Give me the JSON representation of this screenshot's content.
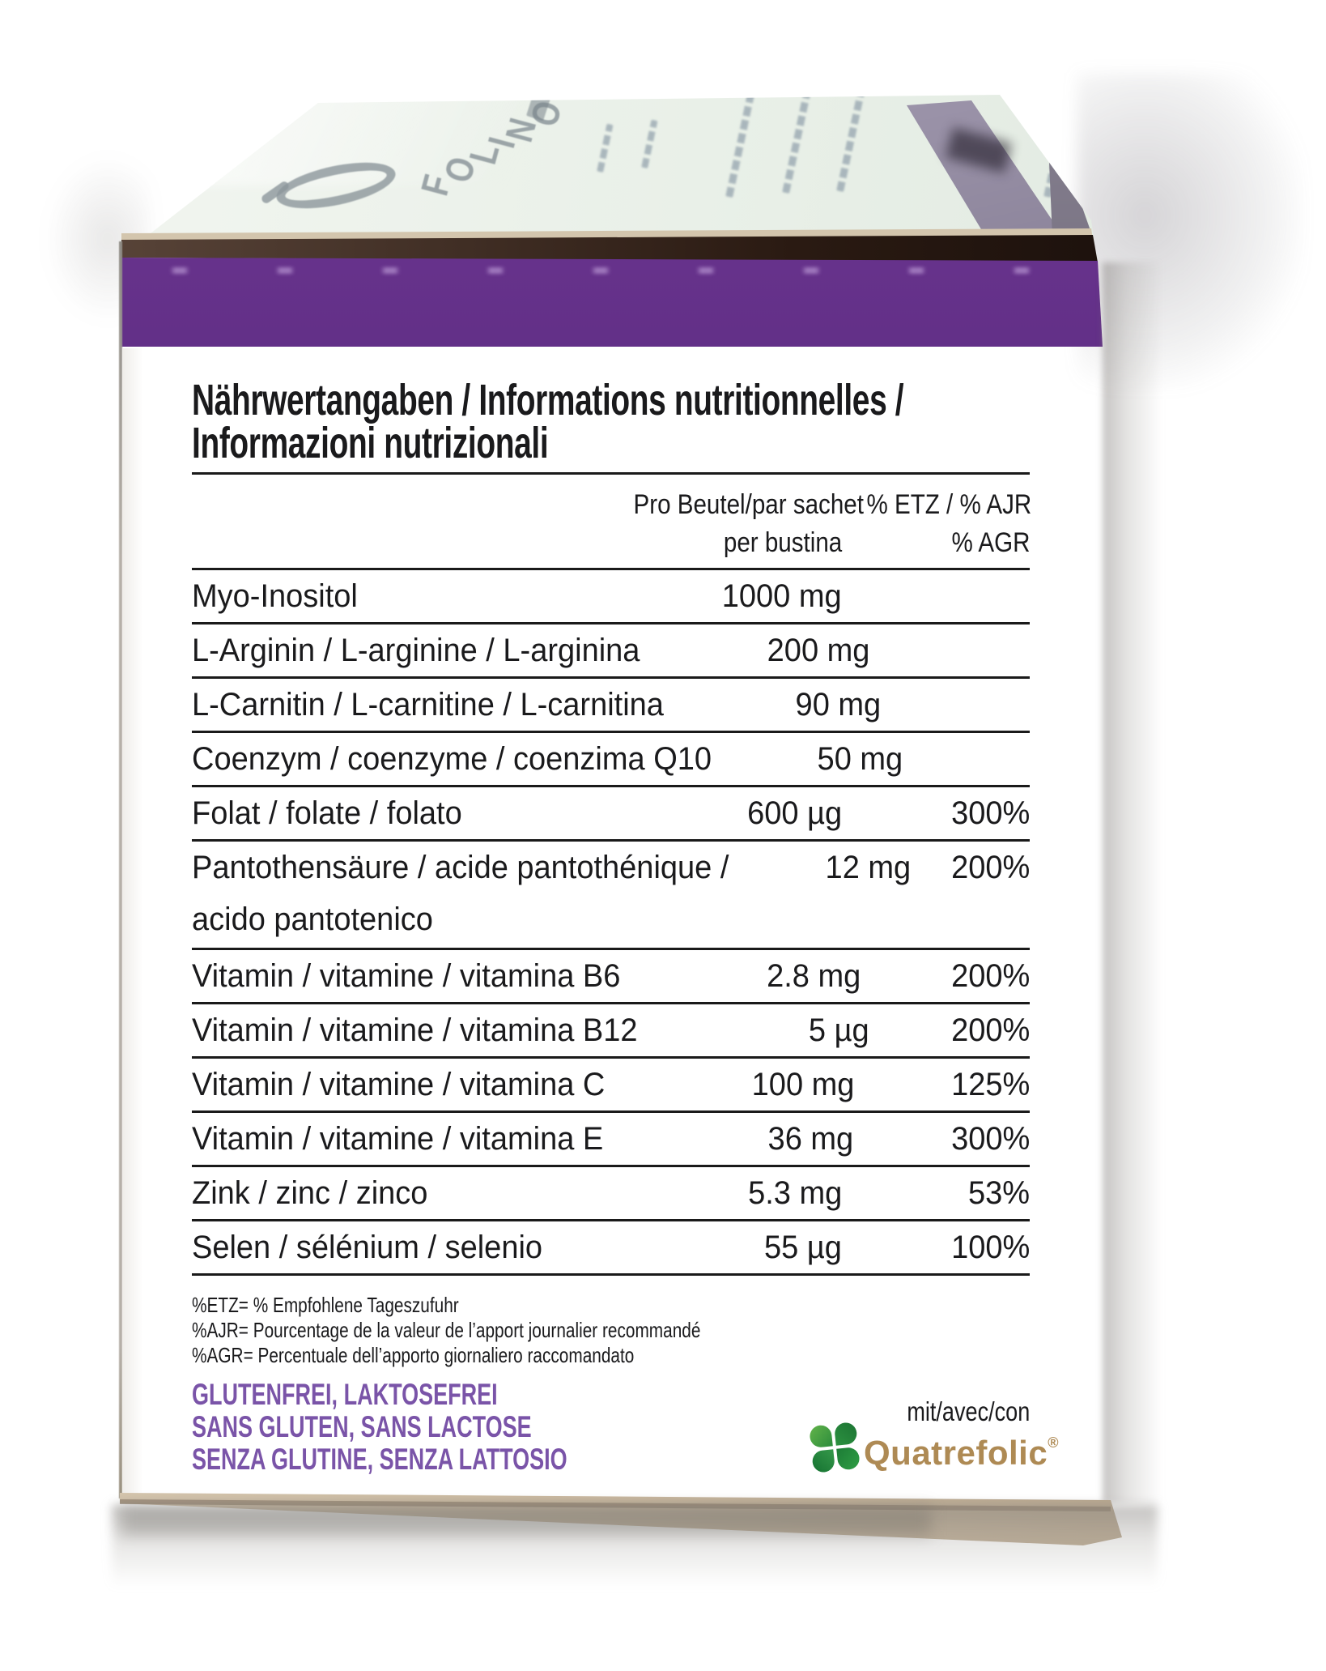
{
  "colors": {
    "purple_band": "#5d2c82",
    "claims_purple": "#7a54a8",
    "quatrefolic_gold": "#ae8a54",
    "clover_green_light": "#2c8c3c",
    "clover_green_dark": "#1c7433",
    "text": "#1a1a1c"
  },
  "lid": {
    "brand": "FOLINO"
  },
  "panel": {
    "title": {
      "line1": "Nährwertangaben / Informations nutritionnelles /",
      "line2": "Informazioni nutrizionali"
    },
    "header": {
      "amount_line1": "Pro Beutel/par sachet",
      "amount_line2": "per bustina",
      "percent_line1": "% ETZ / % AJR",
      "percent_line2": "% AGR"
    },
    "rows": [
      {
        "name": "Myo-Inositol",
        "name2": "",
        "amount": "1000 mg",
        "percent": ""
      },
      {
        "name": "L-Arginin / L-arginine / L-arginina",
        "name2": "",
        "amount": "200 mg",
        "percent": ""
      },
      {
        "name": "L-Carnitin / L-carnitine / L-carnitina",
        "name2": "",
        "amount": "90 mg",
        "percent": ""
      },
      {
        "name": "Coenzym / coenzyme / coenzima Q10",
        "name2": "",
        "amount": "50 mg",
        "percent": ""
      },
      {
        "name": "Folat / folate / folato",
        "name2": "",
        "amount": "600 µg",
        "percent": "300%"
      },
      {
        "name": "Pantothensäure / acide pantothénique /",
        "name2": "acido pantotenico",
        "amount": "12 mg",
        "percent": "200%"
      },
      {
        "name": "Vitamin / vitamine / vitamina B6",
        "name2": "",
        "amount": "2.8 mg",
        "percent": "200%"
      },
      {
        "name": "Vitamin / vitamine / vitamina B12",
        "name2": "",
        "amount": "5 µg",
        "percent": "200%"
      },
      {
        "name": "Vitamin / vitamine / vitamina C",
        "name2": "",
        "amount": "100 mg",
        "percent": "125%"
      },
      {
        "name": "Vitamin / vitamine / vitamina E",
        "name2": "",
        "amount": "36 mg",
        "percent": "300%"
      },
      {
        "name": "Zink / zinc / zinco",
        "name2": "",
        "amount": "5.3 mg",
        "percent": "53%"
      },
      {
        "name": "Selen / sélénium / selenio",
        "name2": "",
        "amount": "55 µg",
        "percent": "100%"
      }
    ],
    "footnotes": [
      "%ETZ= % Empfohlene Tageszufuhr",
      "%AJR= Pourcentage de la valeur de l’apport journalier recommandé",
      "%AGR= Percentuale dell’apporto giornaliero raccomandato"
    ],
    "claims": [
      "GLUTENFREI, LAKTOSEFREI",
      "SANS GLUTEN, SANS LACTOSE",
      "SENZA GLUTINE, SENZA LATTOSIO"
    ],
    "quatrefolic": {
      "prefix": "mit/avec/con",
      "brand": "Quatrefolic",
      "registered": "®"
    }
  }
}
